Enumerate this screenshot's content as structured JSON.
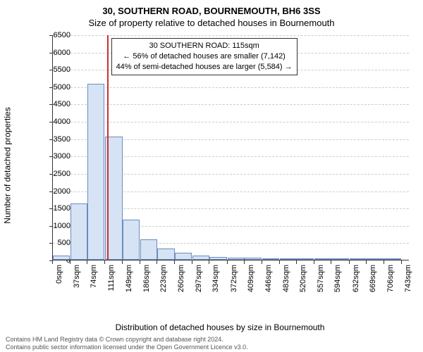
{
  "title_line1": "30, SOUTHERN ROAD, BOURNEMOUTH, BH6 3SS",
  "title_line2": "Size of property relative to detached houses in Bournemouth",
  "ylabel": "Number of detached properties",
  "xlabel": "Distribution of detached houses by size in Bournemouth",
  "chart": {
    "type": "histogram",
    "ylim": [
      0,
      6500
    ],
    "yticks": [
      0,
      500,
      1000,
      1500,
      2000,
      2500,
      3000,
      3500,
      4000,
      4500,
      5000,
      5500,
      6000,
      6500
    ],
    "xticks": [
      {
        "pos": 0,
        "label": "0sqm"
      },
      {
        "pos": 37,
        "label": "37sqm"
      },
      {
        "pos": 74,
        "label": "74sqm"
      },
      {
        "pos": 111,
        "label": "111sqm"
      },
      {
        "pos": 149,
        "label": "149sqm"
      },
      {
        "pos": 186,
        "label": "186sqm"
      },
      {
        "pos": 223,
        "label": "223sqm"
      },
      {
        "pos": 260,
        "label": "260sqm"
      },
      {
        "pos": 297,
        "label": "297sqm"
      },
      {
        "pos": 334,
        "label": "334sqm"
      },
      {
        "pos": 372,
        "label": "372sqm"
      },
      {
        "pos": 409,
        "label": "409sqm"
      },
      {
        "pos": 446,
        "label": "446sqm"
      },
      {
        "pos": 483,
        "label": "483sqm"
      },
      {
        "pos": 520,
        "label": "520sqm"
      },
      {
        "pos": 557,
        "label": "557sqm"
      },
      {
        "pos": 594,
        "label": "594sqm"
      },
      {
        "pos": 632,
        "label": "632sqm"
      },
      {
        "pos": 669,
        "label": "669sqm"
      },
      {
        "pos": 706,
        "label": "706sqm"
      },
      {
        "pos": 743,
        "label": "743sqm"
      }
    ],
    "x_domain_max": 760,
    "bar_fill": "#d6e3f4",
    "bar_stroke": "#6a8bc0",
    "grid_color": "#cccccc",
    "background": "#ffffff",
    "bars": [
      {
        "x0": 0,
        "x1": 37,
        "y": 120
      },
      {
        "x0": 37,
        "x1": 74,
        "y": 1620
      },
      {
        "x0": 74,
        "x1": 111,
        "y": 5080
      },
      {
        "x0": 111,
        "x1": 149,
        "y": 3560
      },
      {
        "x0": 149,
        "x1": 186,
        "y": 1160
      },
      {
        "x0": 186,
        "x1": 223,
        "y": 580
      },
      {
        "x0": 223,
        "x1": 260,
        "y": 320
      },
      {
        "x0": 260,
        "x1": 297,
        "y": 200
      },
      {
        "x0": 297,
        "x1": 334,
        "y": 120
      },
      {
        "x0": 334,
        "x1": 372,
        "y": 90
      },
      {
        "x0": 372,
        "x1": 409,
        "y": 60
      },
      {
        "x0": 409,
        "x1": 446,
        "y": 60
      },
      {
        "x0": 446,
        "x1": 483,
        "y": 30
      },
      {
        "x0": 483,
        "x1": 520,
        "y": 10
      },
      {
        "x0": 520,
        "x1": 557,
        "y": 10
      },
      {
        "x0": 557,
        "x1": 594,
        "y": 5
      },
      {
        "x0": 594,
        "x1": 632,
        "y": 5
      },
      {
        "x0": 632,
        "x1": 669,
        "y": 5
      },
      {
        "x0": 669,
        "x1": 706,
        "y": 5
      },
      {
        "x0": 706,
        "x1": 743,
        "y": 5
      }
    ],
    "reference_line": {
      "x": 115,
      "color": "#d03030"
    },
    "annotation": {
      "line1": "30 SOUTHERN ROAD: 115sqm",
      "line2": "← 56% of detached houses are smaller (7,142)",
      "line3": "44% of semi-detached houses are larger (5,584) →",
      "border": "#333333",
      "bg": "#ffffff"
    }
  },
  "footer_line1": "Contains HM Land Registry data © Crown copyright and database right 2024.",
  "footer_line2": "Contains public sector information licensed under the Open Government Licence v3.0."
}
